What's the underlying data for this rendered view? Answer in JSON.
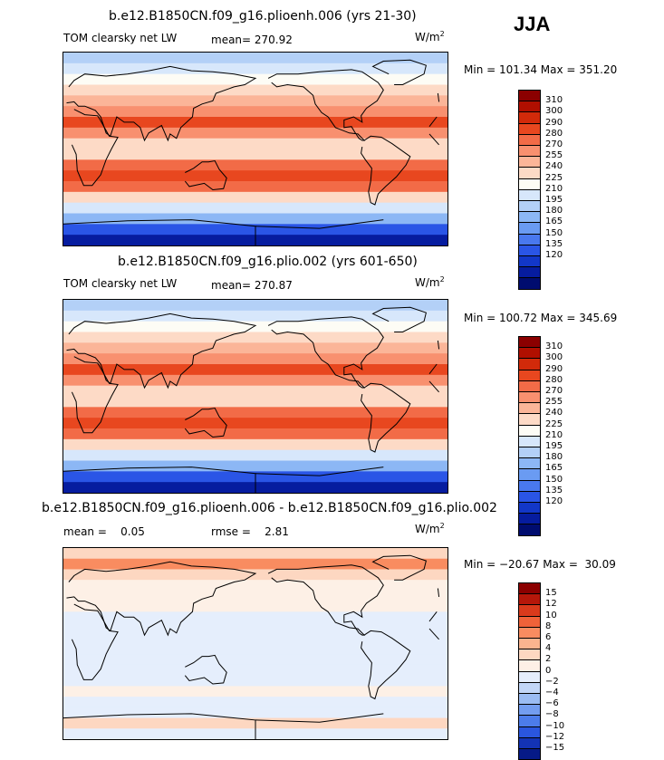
{
  "season": "JJA",
  "panels": [
    {
      "title": "b.e12.B1850CN.f09_g16.plioenh.006 (yrs 21-30)",
      "variable": "TOM clearsky net LW",
      "mean_label": "mean= 270.92",
      "units": "W/m",
      "units_exp": "2",
      "minmax": "Min = 101.34 Max = 351.20",
      "colorbar": {
        "colors": [
          "#8b0000",
          "#b00f00",
          "#d22a0a",
          "#e8471f",
          "#f26b47",
          "#f8906f",
          "#fbb598",
          "#fddac6",
          "#fdfcf5",
          "#d7e7fb",
          "#b3d0f7",
          "#8cb7f5",
          "#6a9bf2",
          "#4978ee",
          "#2a55e6",
          "#1237c8",
          "#061c9f",
          "#000c6f"
        ],
        "labels": [
          "310",
          "300",
          "290",
          "280",
          "270",
          "255",
          "240",
          "225",
          "210",
          "195",
          "180",
          "165",
          "150",
          "135",
          "120"
        ]
      }
    },
    {
      "title": "b.e12.B1850CN.f09_g16.plio.002 (yrs 601-650)",
      "variable": "TOM clearsky net LW",
      "mean_label": "mean= 270.87",
      "units": "W/m",
      "units_exp": "2",
      "minmax": "Min = 100.72 Max = 345.69",
      "colorbar": {
        "colors": [
          "#8b0000",
          "#b00f00",
          "#d22a0a",
          "#e8471f",
          "#f26b47",
          "#f8906f",
          "#fbb598",
          "#fddac6",
          "#fdfcf5",
          "#d7e7fb",
          "#b3d0f7",
          "#8cb7f5",
          "#6a9bf2",
          "#4978ee",
          "#2a55e6",
          "#1237c8",
          "#061c9f",
          "#000c6f"
        ],
        "labels": [
          "310",
          "300",
          "290",
          "280",
          "270",
          "255",
          "240",
          "225",
          "210",
          "195",
          "180",
          "165",
          "150",
          "135",
          "120"
        ]
      }
    },
    {
      "title": "b.e12.B1850CN.f09_g16.plioenh.006 - b.e12.B1850CN.f09_g16.plio.002",
      "mean_label": "mean =    0.05",
      "rmse_label": "rmse =    2.81",
      "units": "W/m",
      "units_exp": "2",
      "minmax": "Min = −20.67 Max =  30.09",
      "colorbar": {
        "colors": [
          "#8b0000",
          "#b5170a",
          "#d93a1c",
          "#ef6239",
          "#f98c60",
          "#fbb48f",
          "#fdd7c1",
          "#fdf0e6",
          "#e5eefc",
          "#c2d6f7",
          "#9bbcf3",
          "#739df0",
          "#4c7cea",
          "#2a56de",
          "#1333b4",
          "#061a87"
        ],
        "labels": [
          "15",
          "12",
          "10",
          "8",
          "6",
          "4",
          "2",
          "0",
          "−2",
          "−4",
          "−6",
          "−8",
          "−10",
          "−12",
          "−15"
        ]
      }
    }
  ],
  "chart_data": [
    {
      "type": "heatmap",
      "title": "b.e12.B1850CN.f09_g16.plioenh.006 (yrs 21-30)",
      "subtitle": "TOM clearsky net LW",
      "units": "W/m2",
      "mean": 270.92,
      "min": 101.34,
      "max": 351.2,
      "contour_levels": [
        120,
        135,
        150,
        165,
        180,
        195,
        210,
        225,
        240,
        255,
        270,
        280,
        290,
        300,
        310
      ],
      "zonal_profile": {
        "lat": [
          85,
          75,
          65,
          55,
          45,
          35,
          25,
          15,
          5,
          -5,
          -15,
          -25,
          -35,
          -45,
          -55,
          -65,
          -75,
          -85
        ],
        "value": [
          222,
          232,
          245,
          258,
          272,
          285,
          300,
          280,
          255,
          262,
          290,
          300,
          290,
          262,
          232,
          200,
          155,
          122
        ]
      },
      "legend": "right"
    },
    {
      "type": "heatmap",
      "title": "b.e12.B1850CN.f09_g16.plio.002 (yrs 601-650)",
      "subtitle": "TOM clearsky net LW",
      "units": "W/m2",
      "mean": 270.87,
      "min": 100.72,
      "max": 345.69,
      "contour_levels": [
        120,
        135,
        150,
        165,
        180,
        195,
        210,
        225,
        240,
        255,
        270,
        280,
        290,
        300,
        310
      ],
      "zonal_profile": {
        "lat": [
          85,
          75,
          65,
          55,
          45,
          35,
          25,
          15,
          5,
          -5,
          -15,
          -25,
          -35,
          -45,
          -55,
          -65,
          -75,
          -85
        ],
        "value": [
          218,
          230,
          244,
          258,
          272,
          285,
          300,
          280,
          255,
          262,
          290,
          300,
          290,
          262,
          232,
          200,
          155,
          122
        ]
      },
      "legend": "right"
    },
    {
      "type": "heatmap",
      "title": "b.e12.B1850CN.f09_g16.plioenh.006 - b.e12.B1850CN.f09_g16.plio.002",
      "units": "W/m2",
      "mean": 0.05,
      "rmse": 2.81,
      "min": -20.67,
      "max": 30.09,
      "contour_levels": [
        -15,
        -12,
        -10,
        -8,
        -6,
        -4,
        -2,
        0,
        2,
        4,
        6,
        8,
        10,
        12,
        15
      ],
      "zonal_profile": {
        "lat": [
          85,
          75,
          65,
          55,
          45,
          35,
          25,
          15,
          5,
          -5,
          -15,
          -25,
          -35,
          -45,
          -55,
          -65,
          -75,
          -85
        ],
        "value": [
          3,
          6,
          2,
          1,
          0.5,
          0.5,
          -0.5,
          -1,
          -0.5,
          -0.5,
          -1,
          -0.5,
          -0.5,
          0,
          -1,
          -2,
          2,
          -2
        ]
      },
      "legend": "right"
    }
  ]
}
